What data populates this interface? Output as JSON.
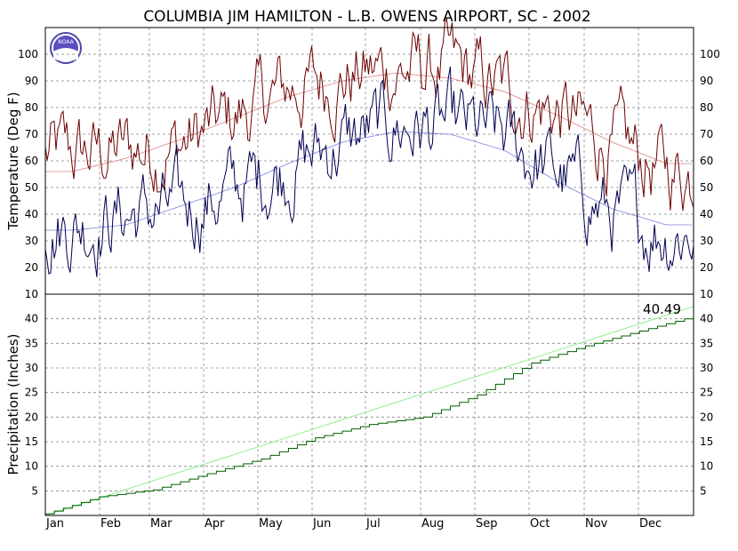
{
  "chart_data": [
    {
      "type": "line",
      "title": "COLUMBIA JIM HAMILTON - L.B. OWENS AIRPORT, SC - 2002",
      "ylabel": "Temperature (Deg F)",
      "ylim": [
        10,
        110
      ],
      "yticks": [
        10,
        20,
        30,
        40,
        50,
        60,
        70,
        80,
        90,
        100
      ],
      "grid": true,
      "x_months": [
        "Jan",
        "Feb",
        "Mar",
        "Apr",
        "May",
        "Jun",
        "Jul",
        "Aug",
        "Sep",
        "Oct",
        "Nov",
        "Dec"
      ],
      "monthly_values": {
        "daily_high": [
          62,
          64,
          66,
          76,
          87,
          91,
          94,
          94,
          86,
          78,
          65,
          56
        ],
        "daily_low": [
          36,
          40,
          41,
          49,
          58,
          67,
          73,
          72,
          68,
          55,
          39,
          34
        ],
        "normal_high": [
          56,
          61,
          68,
          76,
          84,
          90,
          93,
          91,
          86,
          77,
          67,
          59
        ],
        "normal_low": [
          34,
          36,
          43,
          50,
          59,
          67,
          71,
          70,
          64,
          52,
          42,
          36
        ]
      },
      "colors": {
        "daily_high": "#6b0000",
        "daily_low": "#000050",
        "normal_high": "#e08080",
        "normal_low": "#8080e0"
      }
    },
    {
      "type": "line",
      "ylabel": "Precipitation (Inches)",
      "ylim": [
        0,
        45
      ],
      "yticks": [
        5,
        10,
        15,
        20,
        25,
        30,
        35,
        40
      ],
      "grid": true,
      "annotation": "40.49",
      "cumulative_points": [
        {
          "month": "Jan",
          "value": 0.3
        },
        {
          "month": "Feb",
          "value": 3.8
        },
        {
          "month": "Mar",
          "value": 5.2
        },
        {
          "month": "Apr",
          "value": 8.5
        },
        {
          "month": "May",
          "value": 11.5
        },
        {
          "month": "Jun",
          "value": 15.8
        },
        {
          "month": "Jul",
          "value": 18.5
        },
        {
          "month": "Aug",
          "value": 20.0
        },
        {
          "month": "Sep",
          "value": 24.5
        },
        {
          "month": "Oct",
          "value": 31.0
        },
        {
          "month": "Nov",
          "value": 34.5
        },
        {
          "month": "Dec",
          "value": 37.5
        },
        {
          "month": "end",
          "value": 40.49
        }
      ],
      "normal_cumulative_end": 42.5,
      "colors": {
        "observed": "#006000",
        "normal": "#90ee90"
      }
    }
  ]
}
